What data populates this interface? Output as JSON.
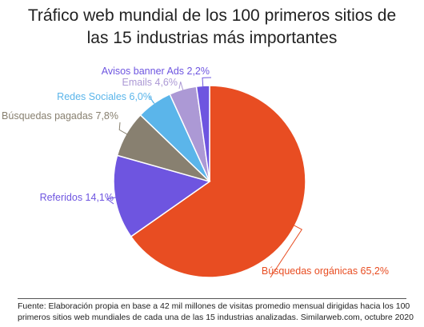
{
  "title_lines": [
    "Tráfico web mundial de los 100 primeros sitios de",
    "las 15 industrias más importantes"
  ],
  "source_lines": [
    "Fuente: Elaboración propia en base a 42 mil millones de visitas promedio mensual dirigidas hacia los 100",
    "primeros sitios web mundiales de cada una de las 15 industrias analizadas. Similarweb.com, octubre 2020"
  ],
  "chart_data": {
    "type": "pie",
    "title": "Tráfico web mundial de los 100 primeros sitios de las 15 industrias más importantes",
    "slices": [
      {
        "label": "Búsquedas orgánicas",
        "value": 65.2,
        "value_text": "65,2%",
        "color": "#E84D22"
      },
      {
        "label": "Referidos",
        "value": 14.1,
        "value_text": "14,1%",
        "color": "#6E55E0"
      },
      {
        "label": "Búsquedas pagadas",
        "value": 7.8,
        "value_text": "7,8%",
        "color": "#888070"
      },
      {
        "label": "Redes Sociales",
        "value": 6.0,
        "value_text": "6,0%",
        "color": "#5BB5EA"
      },
      {
        "label": "Emails",
        "value": 4.6,
        "value_text": "4,6%",
        "color": "#AC99D5"
      },
      {
        "label": "Avisos banner Ads",
        "value": 2.2,
        "value_text": "2,2%",
        "color": "#6E55E0"
      }
    ]
  }
}
